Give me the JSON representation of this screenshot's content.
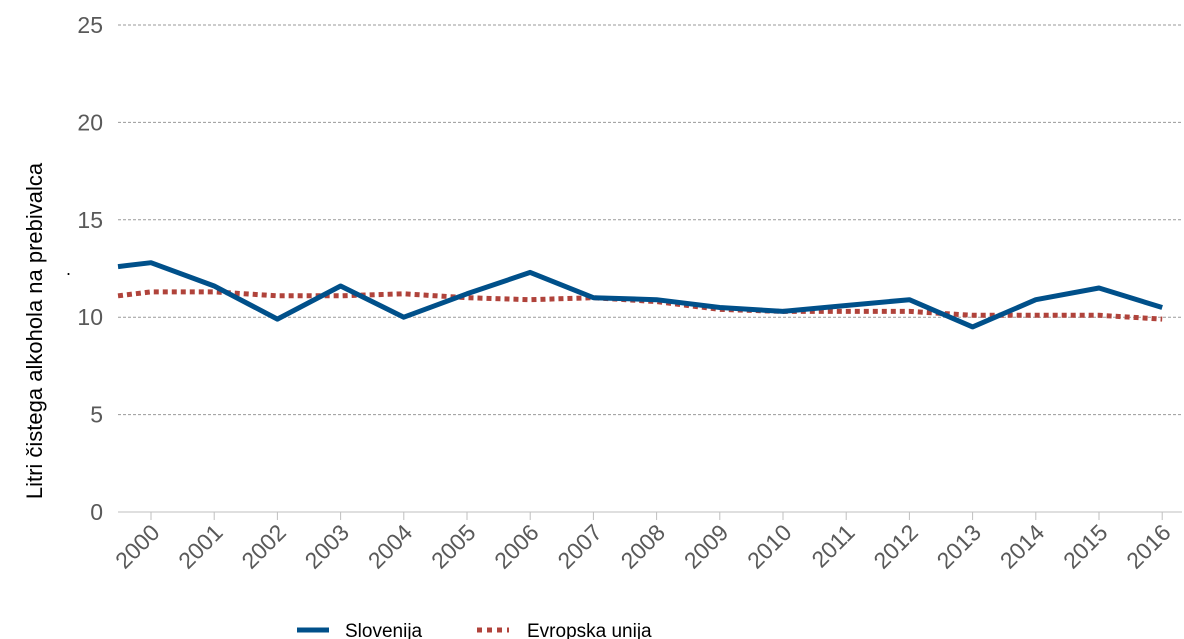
{
  "chart_data": {
    "type": "line",
    "title": "",
    "xlabel": "",
    "ylabel": "Litri čistega alkohola na prebivalca",
    "ylim": [
      0,
      25
    ],
    "yticks": [
      "0",
      "5",
      "10",
      "15",
      "20",
      "25"
    ],
    "categories": [
      "2000",
      "2001",
      "2002",
      "2003",
      "2004",
      "2005",
      "2006",
      "2007",
      "2008",
      "2009",
      "2010",
      "2011",
      "2012",
      "2013",
      "2014",
      "2015",
      "2016"
    ],
    "series": [
      {
        "name": "Slovenija",
        "color": "#00508a",
        "style": "solid",
        "lead_in": 12.6,
        "values": [
          12.8,
          11.6,
          9.9,
          11.6,
          10.0,
          11.2,
          12.3,
          11.0,
          10.9,
          10.5,
          10.3,
          10.6,
          10.9,
          9.5,
          10.9,
          11.5,
          10.5
        ]
      },
      {
        "name": "Evropska unija",
        "color": "#b0433b",
        "style": "dotted",
        "lead_in": 11.1,
        "values": [
          11.3,
          11.3,
          11.1,
          11.1,
          11.2,
          11.0,
          10.9,
          11.0,
          10.8,
          10.4,
          10.3,
          10.3,
          10.3,
          10.1,
          10.1,
          10.1,
          9.9
        ]
      }
    ],
    "grid": true,
    "legend": "bottom-center",
    "stray_mark": "."
  }
}
